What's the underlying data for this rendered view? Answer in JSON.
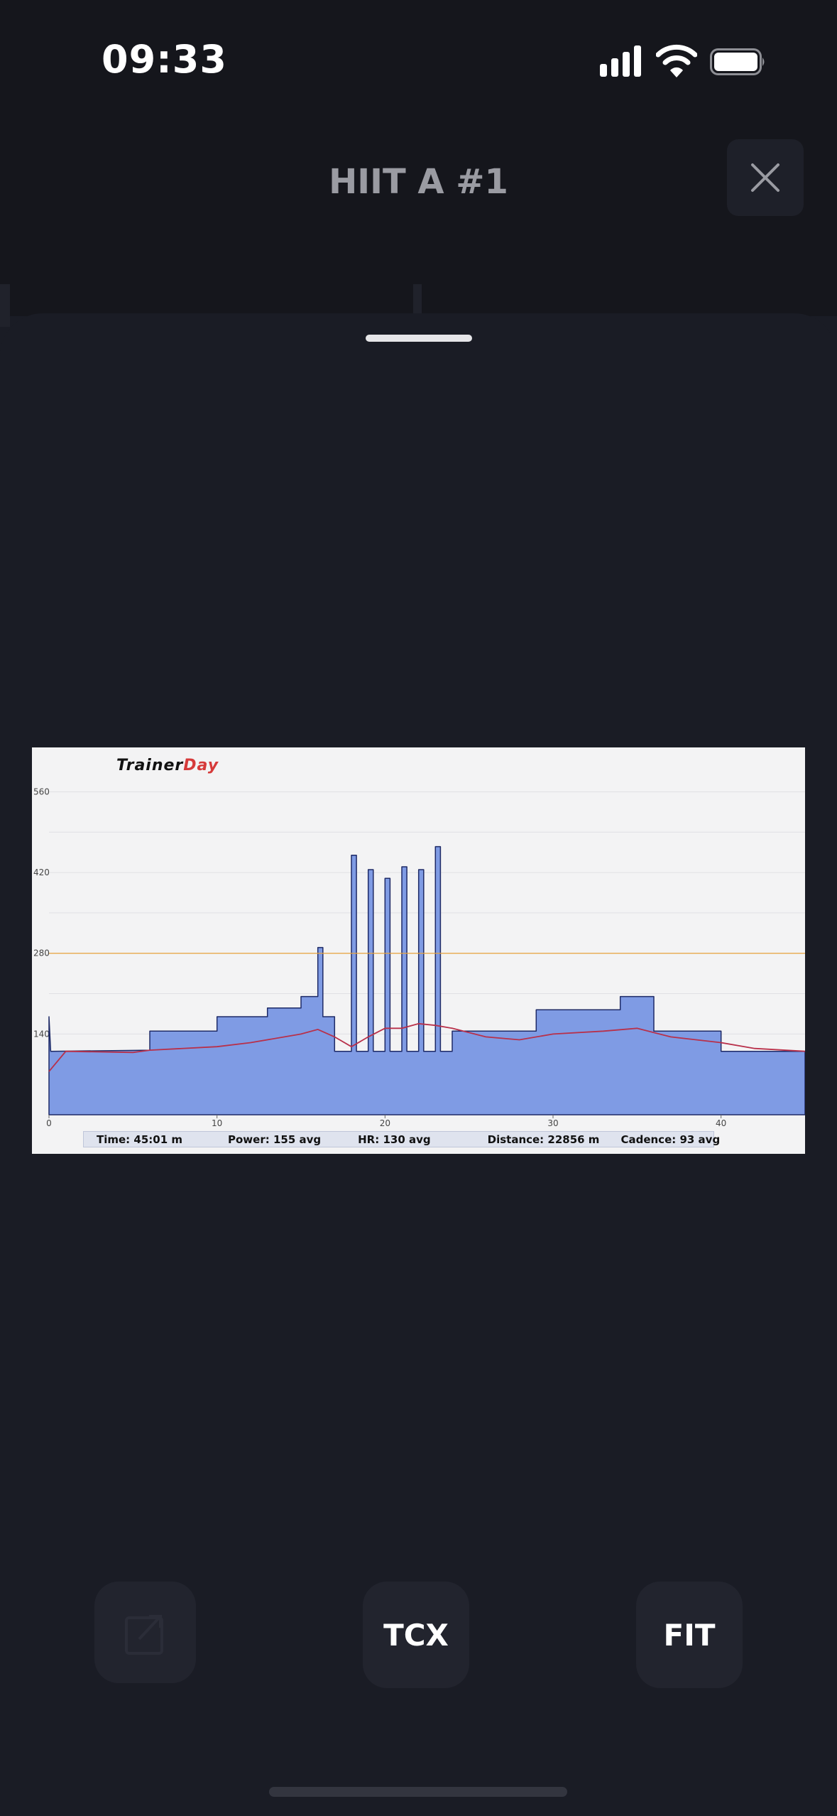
{
  "status_bar": {
    "time": "09:33"
  },
  "header": {
    "title": "HIIT A #1"
  },
  "chart": {
    "logo_part1": "Trainer",
    "logo_part2": "Day",
    "stats": {
      "time": "Time: 45:01 m",
      "power": "Power: 155 avg",
      "hr": "HR: 130 avg",
      "distance": "Distance: 22856 m",
      "cadence": "Cadence: 93 avg"
    }
  },
  "chart_data": {
    "type": "area",
    "title": "",
    "xlabel": "",
    "ylabel": "",
    "xlim": [
      0,
      45
    ],
    "ylim": [
      0,
      600
    ],
    "x_ticks": [
      "0",
      "10",
      "20",
      "30",
      "40"
    ],
    "y_ticks": [
      "140",
      "280",
      "420",
      "560"
    ],
    "threshold_line": 280,
    "grid": true,
    "series": [
      {
        "type": "area",
        "color": "#7f9be4",
        "points": [
          [
            0,
            0
          ],
          [
            0,
            170
          ],
          [
            0.1,
            110
          ],
          [
            6,
            112
          ],
          [
            6,
            145
          ],
          [
            10,
            145
          ],
          [
            10,
            170
          ],
          [
            13,
            170
          ],
          [
            13,
            185
          ],
          [
            15,
            185
          ],
          [
            15,
            205
          ],
          [
            16,
            205
          ],
          [
            16,
            290
          ],
          [
            16.3,
            290
          ],
          [
            16.3,
            170
          ],
          [
            17,
            170
          ],
          [
            17,
            110
          ],
          [
            18,
            110
          ],
          [
            18,
            450
          ],
          [
            18.3,
            450
          ],
          [
            18.3,
            110
          ],
          [
            19,
            110
          ],
          [
            19,
            425
          ],
          [
            19.3,
            425
          ],
          [
            19.3,
            110
          ],
          [
            20,
            110
          ],
          [
            20,
            410
          ],
          [
            20.3,
            410
          ],
          [
            20.3,
            110
          ],
          [
            21,
            110
          ],
          [
            21,
            430
          ],
          [
            21.3,
            430
          ],
          [
            21.3,
            110
          ],
          [
            22,
            110
          ],
          [
            22,
            425
          ],
          [
            22.3,
            425
          ],
          [
            22.3,
            110
          ],
          [
            23,
            110
          ],
          [
            23,
            465
          ],
          [
            23.3,
            465
          ],
          [
            23.3,
            110
          ],
          [
            24,
            110
          ],
          [
            24,
            145
          ],
          [
            29,
            145
          ],
          [
            29,
            182
          ],
          [
            34,
            182
          ],
          [
            34,
            205
          ],
          [
            36,
            205
          ],
          [
            36,
            145
          ],
          [
            40,
            145
          ],
          [
            40,
            110
          ],
          [
            45,
            110
          ],
          [
            45,
            0
          ]
        ]
      },
      {
        "type": "line",
        "color": "#b8304a",
        "points": [
          [
            0,
            75
          ],
          [
            1,
            110
          ],
          [
            5,
            108
          ],
          [
            6,
            112
          ],
          [
            10,
            118
          ],
          [
            12,
            125
          ],
          [
            15,
            140
          ],
          [
            16,
            148
          ],
          [
            17,
            135
          ],
          [
            18,
            118
          ],
          [
            19,
            135
          ],
          [
            20,
            150
          ],
          [
            21,
            150
          ],
          [
            22,
            158
          ],
          [
            23,
            155
          ],
          [
            24,
            150
          ],
          [
            26,
            135
          ],
          [
            28,
            130
          ],
          [
            30,
            140
          ],
          [
            33,
            145
          ],
          [
            35,
            150
          ],
          [
            37,
            135
          ],
          [
            40,
            125
          ],
          [
            42,
            115
          ],
          [
            45,
            110
          ]
        ]
      }
    ]
  },
  "actions": {
    "tcx_label": "TCX",
    "fit_label": "FIT"
  }
}
